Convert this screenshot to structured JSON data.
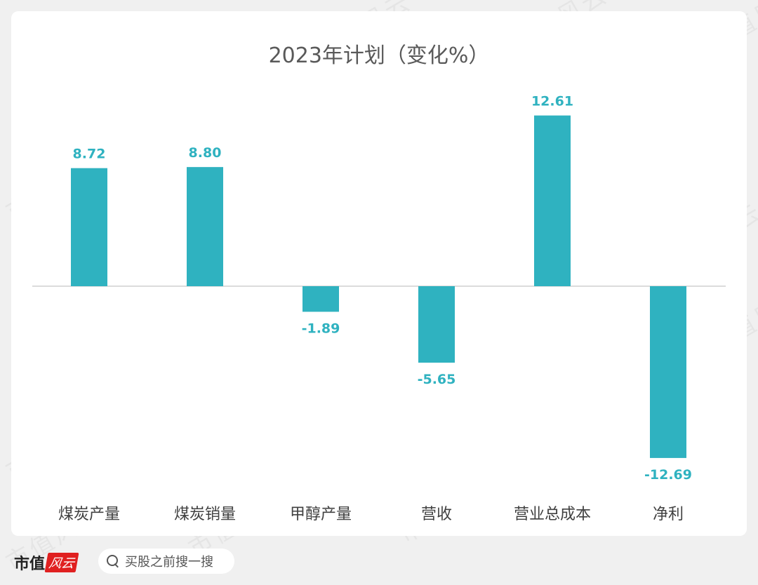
{
  "chart_data": {
    "type": "bar",
    "title": "2023年计划（变化%）",
    "categories": [
      "煤炭产量",
      "煤炭销量",
      "甲醇产量",
      "营收",
      "营业总成本",
      "净利"
    ],
    "values": [
      8.72,
      8.8,
      -1.89,
      -5.65,
      12.61,
      -12.69
    ],
    "value_labels": [
      "8.72",
      "8.80",
      "-1.89",
      "-5.65",
      "12.61",
      "-12.69"
    ],
    "xlabel": "",
    "ylabel": "",
    "ylim": [
      -15,
      15
    ],
    "grid": false,
    "legend": "none",
    "bar_color": "#2fb2c0",
    "label_color": "#2fb2c0"
  },
  "watermark": "市值风云",
  "footer": {
    "logo_text": "市值",
    "logo_badge": "风云",
    "search_placeholder": "买股之前搜一搜"
  }
}
